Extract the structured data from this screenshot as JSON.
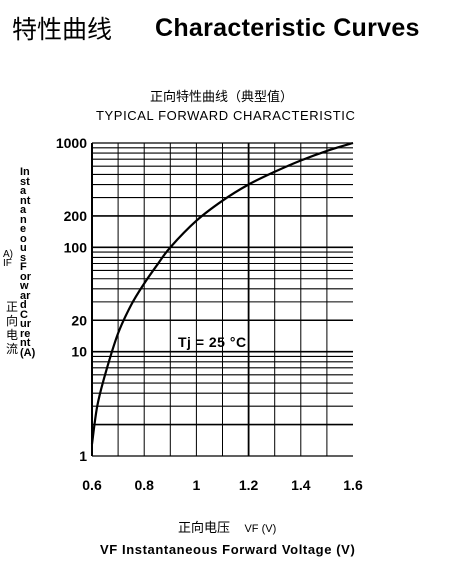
{
  "header": {
    "title_zh": "特性曲线",
    "title_en": "Characteristic Curves"
  },
  "chart_data": {
    "type": "line",
    "title": "正向特性曲线（典型值）",
    "subtitle": "TYPICAL FORWARD CHARACTERISTIC",
    "xlabel_zh": "正向电压",
    "xlabel_zh_unit": "VF (V)",
    "xlabel": "VF  Instantaneous Forward Voltage (V)",
    "ylabel_zh": "正向电流",
    "ylabel": "Instantaneous Forward Current (A)",
    "ylabel_unit": "A) IF",
    "x_ticks": [
      "0.6",
      "0.8",
      "1",
      "1.2",
      "1.4",
      "1.6"
    ],
    "y_ticks": [
      "1",
      "10",
      "20",
      "100",
      "200",
      "1000"
    ],
    "xlim": [
      0.6,
      1.6
    ],
    "ylim": [
      1,
      1000
    ],
    "y_scale": "log",
    "grid": true,
    "annotation": "Tj  =  25  °C",
    "series": [
      {
        "x": [
          0.6,
          0.62,
          0.65,
          0.7,
          0.75,
          0.8,
          0.85,
          0.9,
          1.0,
          1.1,
          1.2,
          1.3,
          1.4,
          1.5,
          1.6
        ],
        "y": [
          1.3,
          3,
          6,
          15,
          28,
          45,
          68,
          100,
          180,
          280,
          400,
          530,
          680,
          840,
          1000
        ]
      }
    ],
    "line_color": "#000000"
  }
}
